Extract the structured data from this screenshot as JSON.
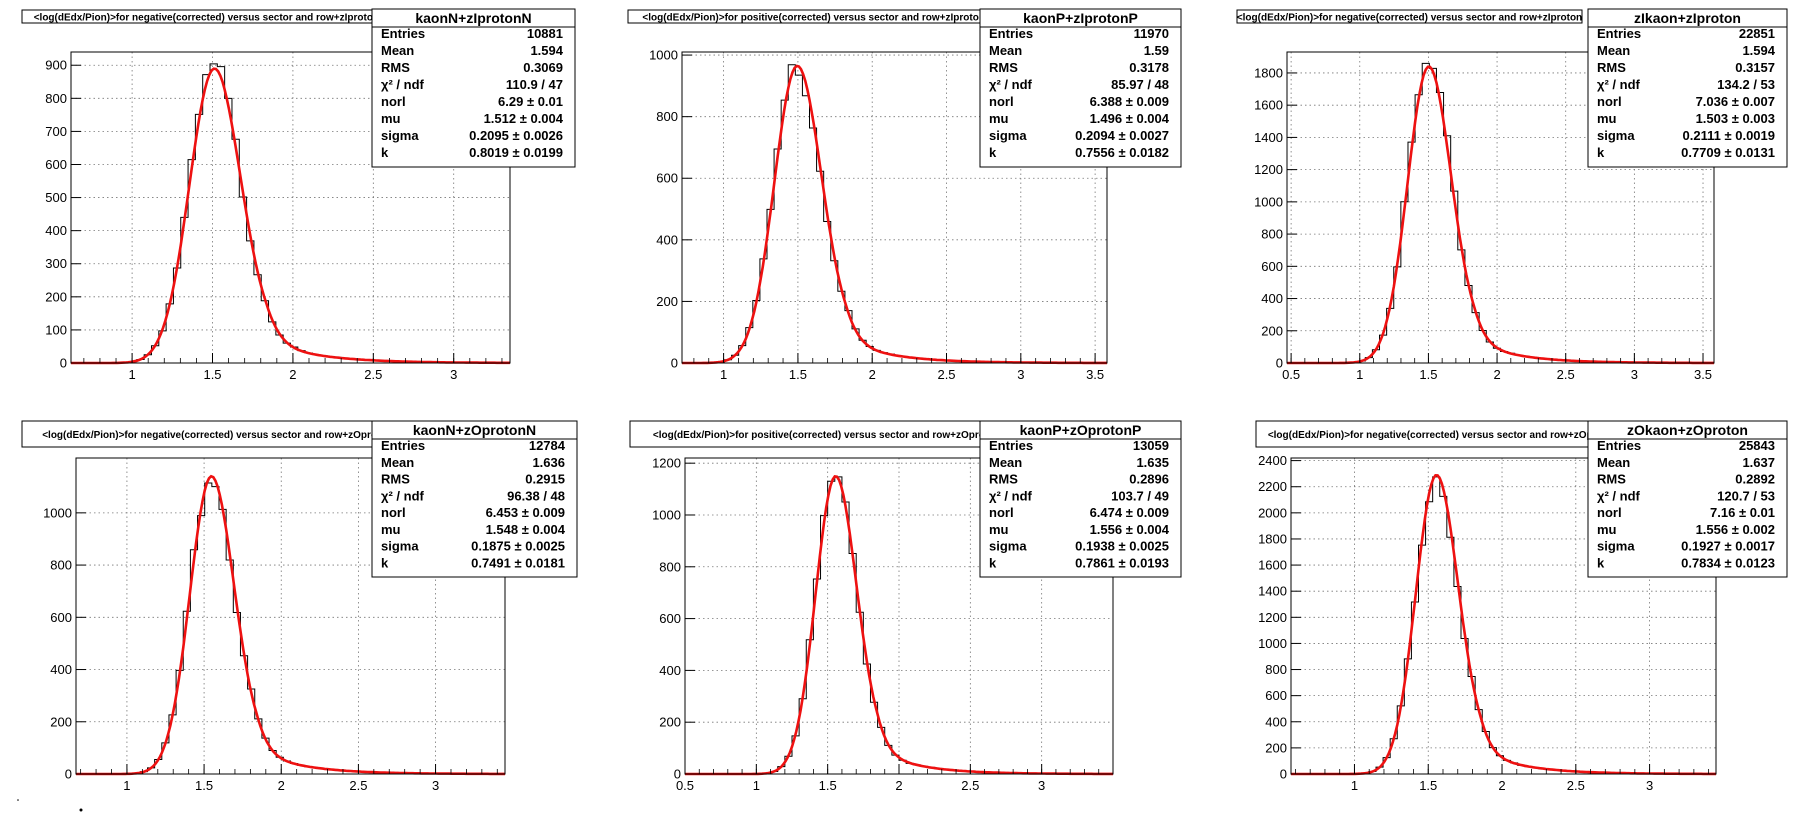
{
  "colors": {
    "histogram": "#000000",
    "fit": "#ee1111",
    "grid": "#777777",
    "background": "#ffffff"
  },
  "chart_data": [
    {
      "type": "histogram-with-fit",
      "title": "<log(dEdx/Pion)>for negative(corrected) versus sector and row+zIprotonN",
      "stats_name": "kaonN+zIprotonN",
      "stats": [
        [
          "Entries",
          "10881"
        ],
        [
          "Mean",
          "1.594"
        ],
        [
          "RMS",
          "0.3069"
        ],
        [
          "χ² / ndf",
          "110.9 / 47"
        ],
        [
          "norl",
          "6.29 ± 0.01"
        ],
        [
          "mu",
          "1.512 ± 0.004"
        ],
        [
          "sigma",
          "0.2095 ± 0.0026"
        ],
        [
          "k",
          "0.8019 ± 0.0199"
        ]
      ],
      "xlim": [
        0.62,
        3.35
      ],
      "ylim": [
        0,
        940
      ],
      "xticks": [
        1,
        1.5,
        2,
        2.5,
        3
      ],
      "xtick_labels": [
        "1",
        "1.5",
        "2",
        "2.5",
        "3"
      ],
      "yticks": [
        0,
        100,
        200,
        300,
        400,
        500,
        600,
        700,
        800,
        900
      ],
      "ytick_labels": [
        "0",
        "100",
        "200",
        "300",
        "400",
        "500",
        "600",
        "700",
        "800",
        "900"
      ],
      "grid": true,
      "fit": {
        "peak": 890,
        "mu": 1.512,
        "sigma_left": 0.155,
        "tail": 0.32
      }
    },
    {
      "type": "histogram-with-fit",
      "title": "<log(dEdx/Pion)>for positive(corrected) versus sector and row+zIprotonP",
      "stats_name": "kaonP+zIprotonP",
      "stats": [
        [
          "Entries",
          "11970"
        ],
        [
          "Mean",
          "1.59"
        ],
        [
          "RMS",
          "0.3178"
        ],
        [
          "χ² / ndf",
          "85.97 / 48"
        ],
        [
          "norl",
          "6.388 ± 0.009"
        ],
        [
          "mu",
          "1.496 ± 0.004"
        ],
        [
          "sigma",
          "0.2094 ± 0.0027"
        ],
        [
          "k",
          "0.7556 ± 0.0182"
        ]
      ],
      "xlim": [
        0.72,
        3.58
      ],
      "ylim": [
        0,
        1010
      ],
      "xticks": [
        1,
        1.5,
        2,
        2.5,
        3,
        3.5
      ],
      "xtick_labels": [
        "1",
        "1.5",
        "2",
        "2.5",
        "3",
        "3.5"
      ],
      "yticks": [
        0,
        200,
        400,
        600,
        800,
        1000
      ],
      "ytick_labels": [
        "0",
        "200",
        "400",
        "600",
        "800",
        "1000"
      ],
      "grid": true,
      "fit": {
        "peak": 965,
        "mu": 1.496,
        "sigma_left": 0.155,
        "tail": 0.32
      }
    },
    {
      "type": "histogram-with-fit",
      "title": "<log(dEdx/Pion)>for negative(corrected) versus sector and row+zIproton",
      "stats_name": "zIkaon+zIproton",
      "stats": [
        [
          "Entries",
          "22851"
        ],
        [
          "Mean",
          "1.594"
        ],
        [
          "RMS",
          "0.3157"
        ],
        [
          "χ² / ndf",
          "134.2 / 53"
        ],
        [
          "norl",
          "7.036 ± 0.007"
        ],
        [
          "mu",
          "1.503 ± 0.003"
        ],
        [
          "sigma",
          "0.2111 ± 0.0019"
        ],
        [
          "k",
          "0.7709 ± 0.0131"
        ]
      ],
      "xlim": [
        0.47,
        3.58
      ],
      "ylim": [
        0,
        1930
      ],
      "xticks": [
        0.5,
        1,
        1.5,
        2,
        2.5,
        3,
        3.5
      ],
      "xtick_labels": [
        "0.5",
        "1",
        "1.5",
        "2",
        "2.5",
        "3",
        "3.5"
      ],
      "yticks": [
        0,
        200,
        400,
        600,
        800,
        1000,
        1200,
        1400,
        1600,
        1800
      ],
      "ytick_labels": [
        "0",
        "200",
        "400",
        "600",
        "800",
        "1000",
        "1200",
        "1400",
        "1600",
        "1800"
      ],
      "grid": true,
      "fit": {
        "peak": 1840,
        "mu": 1.503,
        "sigma_left": 0.155,
        "tail": 0.32
      }
    },
    {
      "type": "histogram-with-fit",
      "title": "<log(dEdx/Pion)>for negative(corrected) versus sector and row+zOprotonN",
      "stats_name": "kaonN+zOprotonN",
      "stats": [
        [
          "Entries",
          "12784"
        ],
        [
          "Mean",
          "1.636"
        ],
        [
          "RMS",
          "0.2915"
        ],
        [
          "χ² / ndf",
          "96.38 / 48"
        ],
        [
          "norl",
          "6.453 ± 0.009"
        ],
        [
          "mu",
          "1.548 ± 0.004"
        ],
        [
          "sigma",
          "0.1875 ± 0.0025"
        ],
        [
          "k",
          "0.7491 ± 0.0181"
        ]
      ],
      "xlim": [
        0.67,
        3.45
      ],
      "ylim": [
        0,
        1210
      ],
      "xticks": [
        1,
        1.5,
        2,
        2.5,
        3
      ],
      "xtick_labels": [
        "1",
        "1.5",
        "2",
        "2.5",
        "3"
      ],
      "yticks": [
        0,
        200,
        400,
        600,
        800,
        1000
      ],
      "ytick_labels": [
        "0",
        "200",
        "400",
        "600",
        "800",
        "1000"
      ],
      "grid": true,
      "fit": {
        "peak": 1140,
        "mu": 1.548,
        "sigma_left": 0.14,
        "tail": 0.3
      }
    },
    {
      "type": "histogram-with-fit",
      "title": "<log(dEdx/Pion)>for positive(corrected) versus sector and row+zOprotonP",
      "stats_name": "kaonP+zOprotonP",
      "stats": [
        [
          "Entries",
          "13059"
        ],
        [
          "Mean",
          "1.635"
        ],
        [
          "RMS",
          "0.2896"
        ],
        [
          "χ² / ndf",
          "103.7 / 49"
        ],
        [
          "norl",
          "6.474 ± 0.009"
        ],
        [
          "mu",
          "1.556 ± 0.004"
        ],
        [
          "sigma",
          "0.1938 ± 0.0025"
        ],
        [
          "k",
          "0.7861 ± 0.0193"
        ]
      ],
      "xlim": [
        0.5,
        3.5
      ],
      "ylim": [
        0,
        1220
      ],
      "xticks": [
        0.5,
        1,
        1.5,
        2,
        2.5,
        3
      ],
      "xtick_labels": [
        "0.5",
        "1",
        "1.5",
        "2",
        "2.5",
        "3"
      ],
      "yticks": [
        0,
        200,
        400,
        600,
        800,
        1000,
        1200
      ],
      "ytick_labels": [
        "0",
        "200",
        "400",
        "600",
        "800",
        "1000",
        "1200"
      ],
      "grid": true,
      "fit": {
        "peak": 1150,
        "mu": 1.556,
        "sigma_left": 0.14,
        "tail": 0.3
      }
    },
    {
      "type": "histogram-with-fit",
      "title": "<log(dEdx/Pion)>for negative(corrected) versus sector and row+zOproton",
      "stats_name": "zOkaon+zOproton",
      "stats": [
        [
          "Entries",
          "25843"
        ],
        [
          "Mean",
          "1.637"
        ],
        [
          "RMS",
          "0.2892"
        ],
        [
          "χ² / ndf",
          "120.7 / 53"
        ],
        [
          "norl",
          "7.16 ± 0.01"
        ],
        [
          "mu",
          "1.556 ± 0.002"
        ],
        [
          "sigma",
          "0.1927 ± 0.0017"
        ],
        [
          "k",
          "0.7834 ± 0.0123"
        ]
      ],
      "xlim": [
        0.57,
        3.45
      ],
      "ylim": [
        0,
        2420
      ],
      "xticks": [
        1,
        1.5,
        2,
        2.5,
        3
      ],
      "xtick_labels": [
        "1",
        "1.5",
        "2",
        "2.5",
        "3"
      ],
      "yticks": [
        0,
        200,
        400,
        600,
        800,
        1000,
        1200,
        1400,
        1600,
        1800,
        2000,
        2200,
        2400
      ],
      "ytick_labels": [
        "0",
        "200",
        "400",
        "600",
        "800",
        "1000",
        "1200",
        "1400",
        "1600",
        "1800",
        "2000",
        "2200",
        "2400"
      ],
      "grid": true,
      "fit": {
        "peak": 2290,
        "mu": 1.556,
        "sigma_left": 0.14,
        "tail": 0.3
      }
    }
  ]
}
